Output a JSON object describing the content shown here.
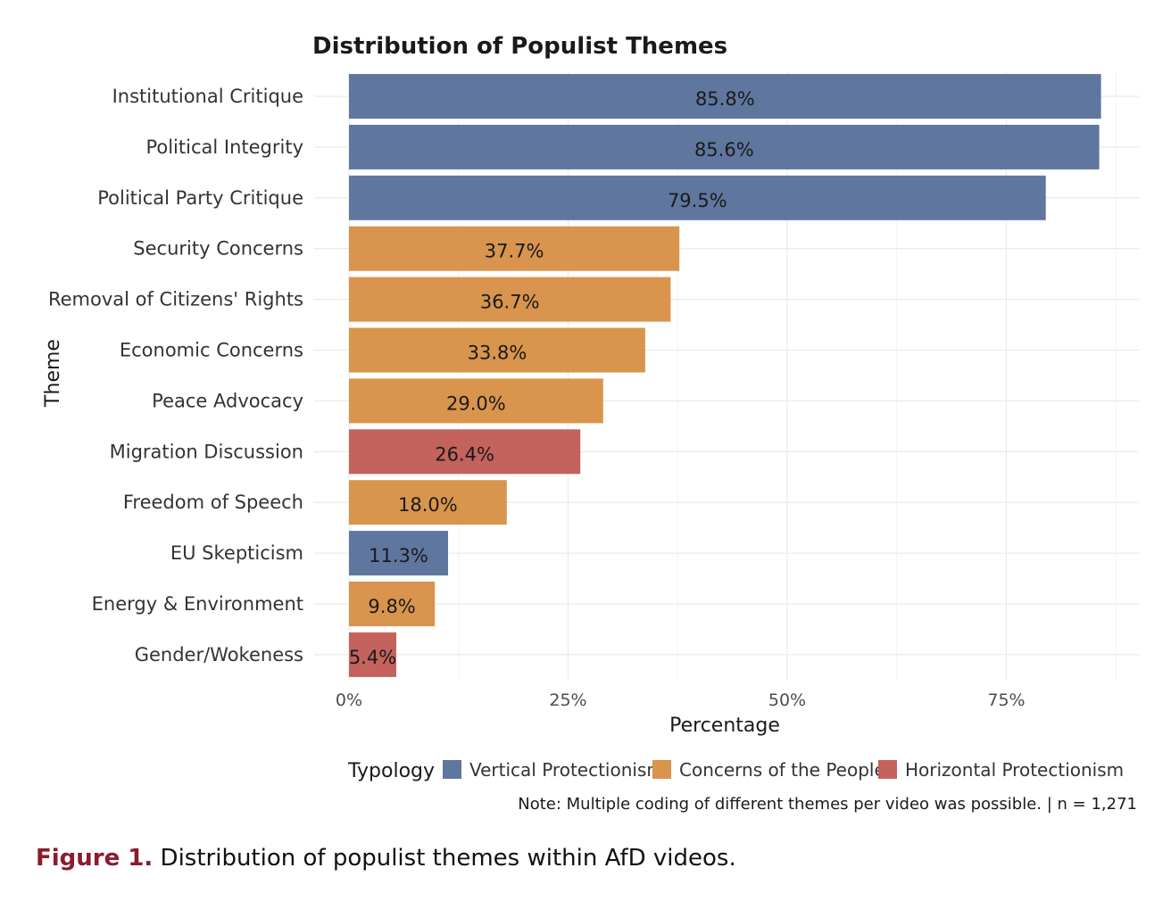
{
  "chart_data": {
    "type": "bar",
    "orientation": "horizontal",
    "title": "Distribution of Populist Themes",
    "xlabel": "Percentage",
    "ylabel": "Theme",
    "xlim": [
      0,
      90
    ],
    "xticks": [
      0,
      25,
      50,
      75
    ],
    "xtick_labels": [
      "0%",
      "25%",
      "50%",
      "75%"
    ],
    "categories": [
      "Institutional Critique",
      "Political Integrity",
      "Political Party Critique",
      "Security Concerns",
      "Removal of Citizens' Rights",
      "Economic Concerns",
      "Peace Advocacy",
      "Migration Discussion",
      "Freedom of Speech",
      "EU Skepticism",
      "Energy & Environment",
      "Gender/Wokeness"
    ],
    "values": [
      85.8,
      85.6,
      79.5,
      37.7,
      36.7,
      33.8,
      29.0,
      26.4,
      18.0,
      11.3,
      9.8,
      5.4
    ],
    "value_labels": [
      "85.8%",
      "85.6%",
      "79.5%",
      "37.7%",
      "36.7%",
      "33.8%",
      "29.0%",
      "26.4%",
      "18.0%",
      "11.3%",
      "9.8%",
      "5.4%"
    ],
    "groups": [
      "Vertical Protectionism",
      "Vertical Protectionism",
      "Vertical Protectionism",
      "Concerns of the People",
      "Concerns of the People",
      "Concerns of the People",
      "Concerns of the People",
      "Horizontal Protectionism",
      "Concerns of the People",
      "Vertical Protectionism",
      "Concerns of the People",
      "Horizontal Protectionism"
    ],
    "legend": {
      "title": "Typology",
      "position": "bottom",
      "entries": [
        {
          "name": "Vertical Protectionism",
          "color": "#5f769f"
        },
        {
          "name": "Concerns of the People",
          "color": "#d9944d"
        },
        {
          "name": "Horizontal Protectionism",
          "color": "#c4625d"
        }
      ]
    },
    "note": "Note: Multiple coding of different themes per video was possible. | n = 1,271",
    "grid": true
  },
  "caption": {
    "label": "Figure 1.",
    "text": " Distribution of populist themes within AfD videos."
  }
}
